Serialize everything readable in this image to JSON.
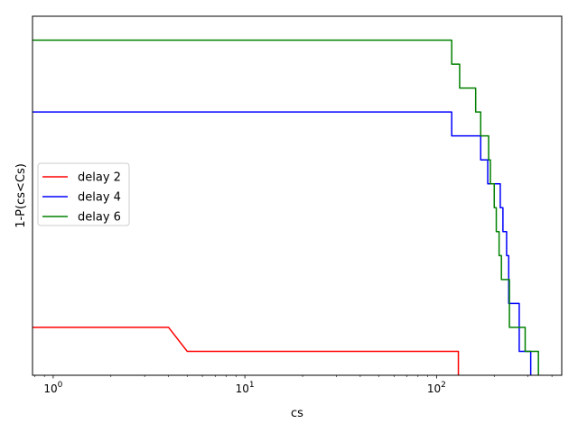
{
  "chart_data": {
    "type": "line",
    "xlabel": "cs",
    "ylabel": "1-P(cs<Cs)",
    "x_scale": "log",
    "xlim": [
      0.78,
      450
    ],
    "ylim": [
      0.0,
      0.3
    ],
    "x_tick_labels": [
      {
        "value": 1,
        "base": "10",
        "exp": "0"
      },
      {
        "value": 10,
        "base": "10",
        "exp": "1"
      },
      {
        "value": 100,
        "base": "10",
        "exp": "2"
      }
    ],
    "y_tick_labels_shown": false,
    "grid": false,
    "legend_position": "center-left",
    "series": [
      {
        "name": "delay 2",
        "color": "#ff0000",
        "points": [
          [
            0.78,
            0.04
          ],
          [
            4,
            0.04
          ],
          [
            5,
            0.02
          ],
          [
            130,
            0.02
          ],
          [
            130,
            0.0
          ]
        ]
      },
      {
        "name": "delay 4",
        "color": "#0000ff",
        "points": [
          [
            0.78,
            0.22
          ],
          [
            120,
            0.22
          ],
          [
            120,
            0.2
          ],
          [
            170,
            0.2
          ],
          [
            170,
            0.18
          ],
          [
            185,
            0.18
          ],
          [
            185,
            0.16
          ],
          [
            215,
            0.16
          ],
          [
            215,
            0.14
          ],
          [
            222,
            0.14
          ],
          [
            222,
            0.12
          ],
          [
            232,
            0.12
          ],
          [
            232,
            0.1
          ],
          [
            238,
            0.1
          ],
          [
            238,
            0.06
          ],
          [
            270,
            0.06
          ],
          [
            270,
            0.02
          ],
          [
            310,
            0.02
          ],
          [
            310,
            0.0
          ]
        ]
      },
      {
        "name": "delay 6",
        "color": "#008000",
        "points": [
          [
            0.78,
            0.28
          ],
          [
            120,
            0.28
          ],
          [
            120,
            0.26
          ],
          [
            132,
            0.26
          ],
          [
            132,
            0.24
          ],
          [
            160,
            0.24
          ],
          [
            160,
            0.22
          ],
          [
            170,
            0.22
          ],
          [
            170,
            0.2
          ],
          [
            187,
            0.2
          ],
          [
            187,
            0.18
          ],
          [
            191,
            0.18
          ],
          [
            191,
            0.16
          ],
          [
            200,
            0.16
          ],
          [
            200,
            0.14
          ],
          [
            205,
            0.14
          ],
          [
            205,
            0.12
          ],
          [
            212,
            0.12
          ],
          [
            212,
            0.1
          ],
          [
            218,
            0.1
          ],
          [
            218,
            0.08
          ],
          [
            240,
            0.08
          ],
          [
            240,
            0.04
          ],
          [
            290,
            0.04
          ],
          [
            290,
            0.02
          ],
          [
            340,
            0.02
          ],
          [
            340,
            0.0
          ]
        ]
      }
    ]
  }
}
